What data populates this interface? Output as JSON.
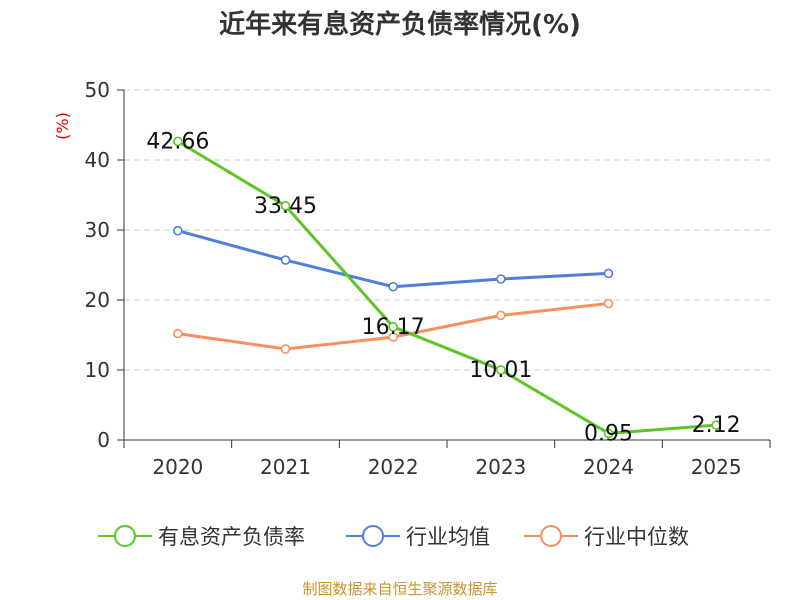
{
  "title": "近年来有息资产负债率情况(%)",
  "source": "制图数据来自恒生聚源数据库",
  "colors": {
    "source_text": "#c8962a",
    "ylabel": "#dd0000",
    "axis": "#333333",
    "grid": "#cccccc"
  },
  "chart_data": {
    "type": "line",
    "title": "近年来有息资产负债率情况(%)",
    "xlabel": "",
    "ylabel": "(%)",
    "categories": [
      "2020",
      "2021",
      "2022",
      "2023",
      "2024",
      "2025"
    ],
    "ylim": [
      0,
      50
    ],
    "yticks": [
      0,
      10,
      20,
      30,
      40,
      50
    ],
    "grid": true,
    "legend_position": "bottom",
    "series": [
      {
        "name": "有息资产负债率",
        "color": "#5ec42a",
        "values": [
          42.66,
          33.45,
          16.17,
          10.01,
          0.95,
          2.12
        ],
        "labels": [
          "42.66",
          "33.45",
          "16.17",
          "10.01",
          "0.95",
          "2.12"
        ]
      },
      {
        "name": "行业均值",
        "color": "#4f7fd9",
        "values": [
          29.9,
          25.7,
          21.9,
          23.0,
          23.8,
          null
        ]
      },
      {
        "name": "行业中位数",
        "color": "#f5915e",
        "values": [
          15.2,
          13.0,
          14.7,
          17.8,
          19.5,
          null
        ]
      }
    ]
  }
}
